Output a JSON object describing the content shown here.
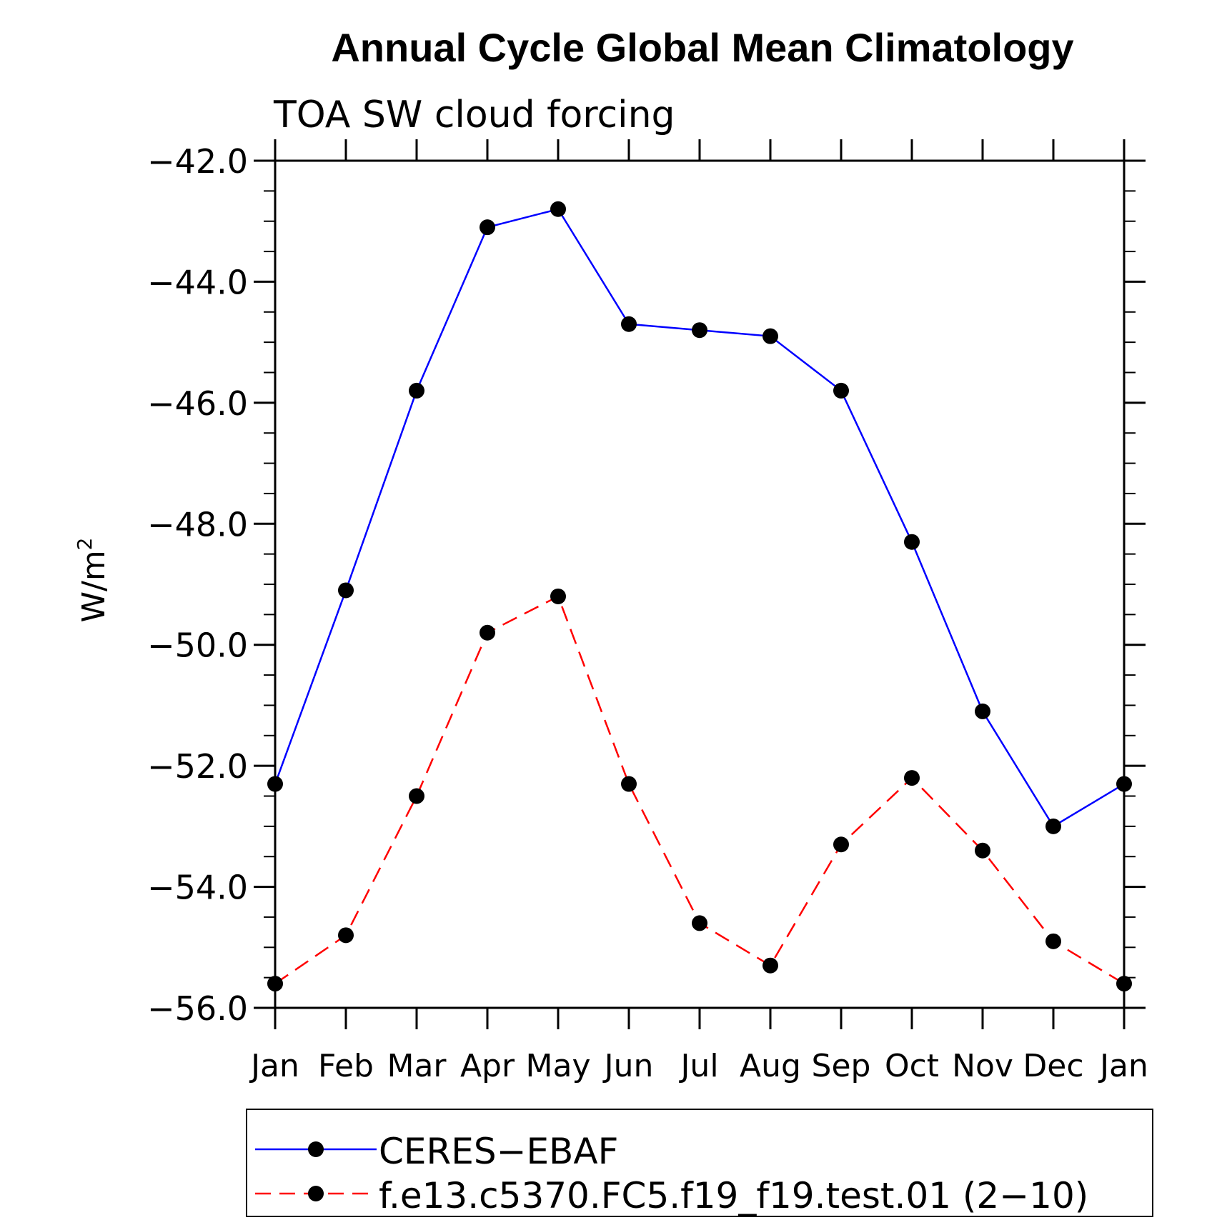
{
  "chart_data": {
    "type": "line",
    "title": "Annual Cycle Global Mean Climatology",
    "subtitle": "TOA SW cloud forcing",
    "ylabel": "W/m",
    "ylabel_superscript": "2",
    "xlabel": "",
    "categories": [
      "Jan",
      "Feb",
      "Mar",
      "Apr",
      "May",
      "Jun",
      "Jul",
      "Aug",
      "Sep",
      "Oct",
      "Nov",
      "Dec",
      "Jan"
    ],
    "ylim": [
      -56.0,
      -42.0
    ],
    "yticks": [
      -56.0,
      -54.0,
      -52.0,
      -50.0,
      -48.0,
      -46.0,
      -44.0,
      -42.0
    ],
    "ytick_labels": [
      "−56.0",
      "−54.0",
      "−52.0",
      "−50.0",
      "−48.0",
      "−46.0",
      "−44.0",
      "−42.0"
    ],
    "grid": false,
    "legend_position": "bottom",
    "series": [
      {
        "name": "CERES−EBAF",
        "color": "#0000ff",
        "dash": "solid",
        "marker": "filled-circle",
        "values": [
          -52.3,
          -49.1,
          -45.8,
          -43.1,
          -42.8,
          -44.7,
          -44.8,
          -44.9,
          -45.8,
          -48.3,
          -51.1,
          -53.0,
          -52.3
        ]
      },
      {
        "name": "f.e13.c5370.FC5.f19_f19.test.01 (2−10)",
        "color": "#ff0000",
        "dash": "dashed",
        "marker": "filled-circle",
        "values": [
          -55.6,
          -54.8,
          -52.5,
          -49.8,
          -49.2,
          -52.3,
          -54.6,
          -55.3,
          -53.3,
          -52.2,
          -53.4,
          -54.9,
          -55.6
        ]
      }
    ]
  }
}
